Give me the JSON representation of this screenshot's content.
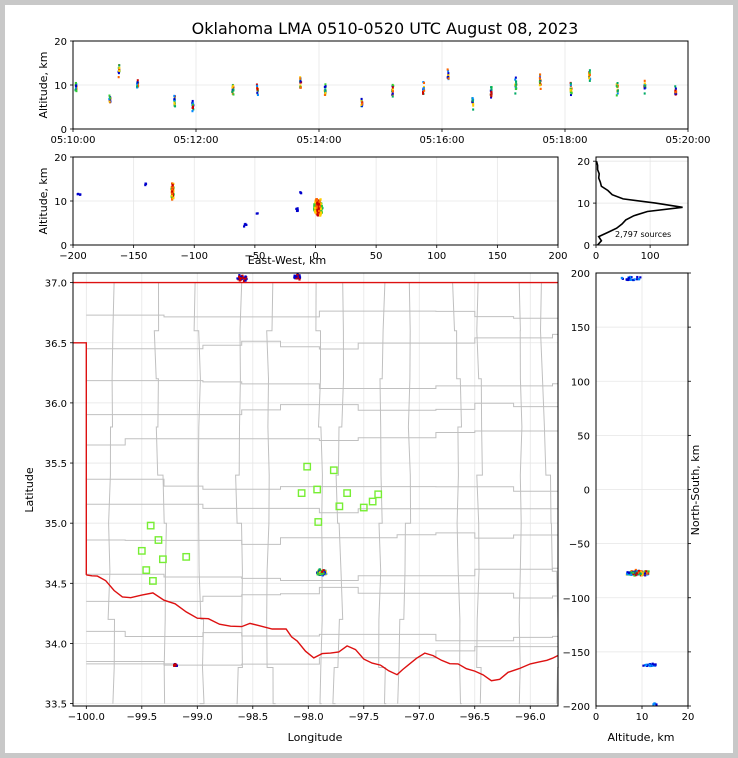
{
  "chart_data": {
    "type": "scatter",
    "title": "Oklahoma LMA 0510-0520 UTC August 08, 2023",
    "colors": {
      "state_border": "#dd1111",
      "county_lines": "#c0c0c0",
      "stations": "#77ee33",
      "palette": [
        "#0000cc",
        "#0088ff",
        "#00aa66",
        "#33cc33",
        "#ffcc00",
        "#ff6600",
        "#cc0000"
      ]
    },
    "time_altitude": {
      "ylabel": "Altitude, km",
      "ylim": [
        0,
        20
      ],
      "yticks": [
        "0",
        "10",
        "20"
      ],
      "xticks": [
        "05:10:00",
        "05:12:00",
        "05:14:00",
        "05:16:00",
        "05:18:00",
        "05:20:00"
      ],
      "xlim_minutes": [
        0,
        10
      ],
      "clusters": [
        {
          "t": 0.05,
          "z": 9.5
        },
        {
          "t": 0.6,
          "z": 6.5
        },
        {
          "t": 0.75,
          "z": 13.5
        },
        {
          "t": 1.05,
          "z": 10
        },
        {
          "t": 1.65,
          "z": 6
        },
        {
          "t": 1.95,
          "z": 5.5
        },
        {
          "t": 2.6,
          "z": 9
        },
        {
          "t": 3.0,
          "z": 9
        },
        {
          "t": 3.7,
          "z": 10
        },
        {
          "t": 4.1,
          "z": 8.5
        },
        {
          "t": 4.7,
          "z": 6
        },
        {
          "t": 5.2,
          "z": 9
        },
        {
          "t": 5.7,
          "z": 9
        },
        {
          "t": 6.1,
          "z": 12
        },
        {
          "t": 6.5,
          "z": 6
        },
        {
          "t": 6.8,
          "z": 8.5
        },
        {
          "t": 7.2,
          "z": 10
        },
        {
          "t": 7.6,
          "z": 11
        },
        {
          "t": 8.1,
          "z": 9
        },
        {
          "t": 8.4,
          "z": 12
        },
        {
          "t": 8.85,
          "z": 9
        },
        {
          "t": 9.3,
          "z": 10
        },
        {
          "t": 9.8,
          "z": 8.5
        }
      ]
    },
    "ew_altitude": {
      "xlabel": "East-West, km",
      "ylabel": "Altitude, km",
      "xlim": [
        -200,
        200
      ],
      "ylim": [
        0,
        20
      ],
      "xticks": [
        "−200",
        "−150",
        "−100",
        "−50",
        "0",
        "50",
        "100",
        "150",
        "200"
      ],
      "yticks": [
        "0",
        "10",
        "20"
      ]
    },
    "histogram": {
      "label": "2,797 sources",
      "xticks": [
        "0",
        "100"
      ],
      "yticks": [
        "0",
        "10",
        "20"
      ],
      "altitude_km": [
        0,
        1,
        2,
        3,
        4,
        5,
        6,
        7,
        8,
        9,
        10,
        11,
        12,
        13,
        14,
        15,
        16,
        17,
        18,
        19,
        20
      ],
      "counts": [
        3,
        10,
        5,
        22,
        38,
        48,
        55,
        70,
        95,
        160,
        110,
        50,
        30,
        22,
        10,
        8,
        5,
        6,
        3,
        3,
        1
      ]
    },
    "map": {
      "xlabel": "Longitude",
      "ylabel": "Latitude",
      "xlim": [
        -100.12,
        -95.75
      ],
      "ylim": [
        33.48,
        37.08
      ],
      "xticks": [
        "−100.0",
        "−99.5",
        "−99.0",
        "−98.5",
        "−98.0",
        "−97.5",
        "−97.0",
        "−96.5",
        "−96.0"
      ],
      "yticks": [
        "33.5",
        "34.0",
        "34.5",
        "35.0",
        "35.5",
        "36.0",
        "36.5",
        "37.0"
      ],
      "stations": [
        {
          "lon": -98.01,
          "lat": 35.47
        },
        {
          "lon": -97.77,
          "lat": 35.44
        },
        {
          "lon": -98.06,
          "lat": 35.25
        },
        {
          "lon": -97.92,
          "lat": 35.28
        },
        {
          "lon": -97.65,
          "lat": 35.25
        },
        {
          "lon": -97.37,
          "lat": 35.24
        },
        {
          "lon": -97.42,
          "lat": 35.18
        },
        {
          "lon": -97.5,
          "lat": 35.13
        },
        {
          "lon": -97.72,
          "lat": 35.14
        },
        {
          "lon": -97.91,
          "lat": 35.01
        },
        {
          "lon": -99.42,
          "lat": 34.98
        },
        {
          "lon": -99.35,
          "lat": 34.86
        },
        {
          "lon": -99.5,
          "lat": 34.77
        },
        {
          "lon": -99.31,
          "lat": 34.7
        },
        {
          "lon": -99.1,
          "lat": 34.72
        },
        {
          "lon": -99.46,
          "lat": 34.61
        },
        {
          "lon": -99.4,
          "lat": 34.52
        }
      ],
      "clusters": [
        {
          "lon": -97.88,
          "lat": 34.59,
          "n": 120,
          "spread": 0.05
        },
        {
          "lon": -98.6,
          "lat": 37.04,
          "n": 40,
          "spread": 0.06
        },
        {
          "lon": -98.1,
          "lat": 37.05,
          "n": 40,
          "spread": 0.05
        },
        {
          "lon": -99.2,
          "lat": 33.82,
          "n": 25,
          "spread": 0.02
        }
      ]
    },
    "ns_altitude": {
      "xlabel": "Altitude, km",
      "ylabel": "North-South, km",
      "xlim": [
        0,
        20
      ],
      "ylim": [
        -200,
        200
      ],
      "xticks": [
        "0",
        "10",
        "20"
      ],
      "yticks": [
        "−200",
        "−150",
        "−100",
        "−50",
        "0",
        "50",
        "100",
        "150",
        "200"
      ]
    }
  }
}
